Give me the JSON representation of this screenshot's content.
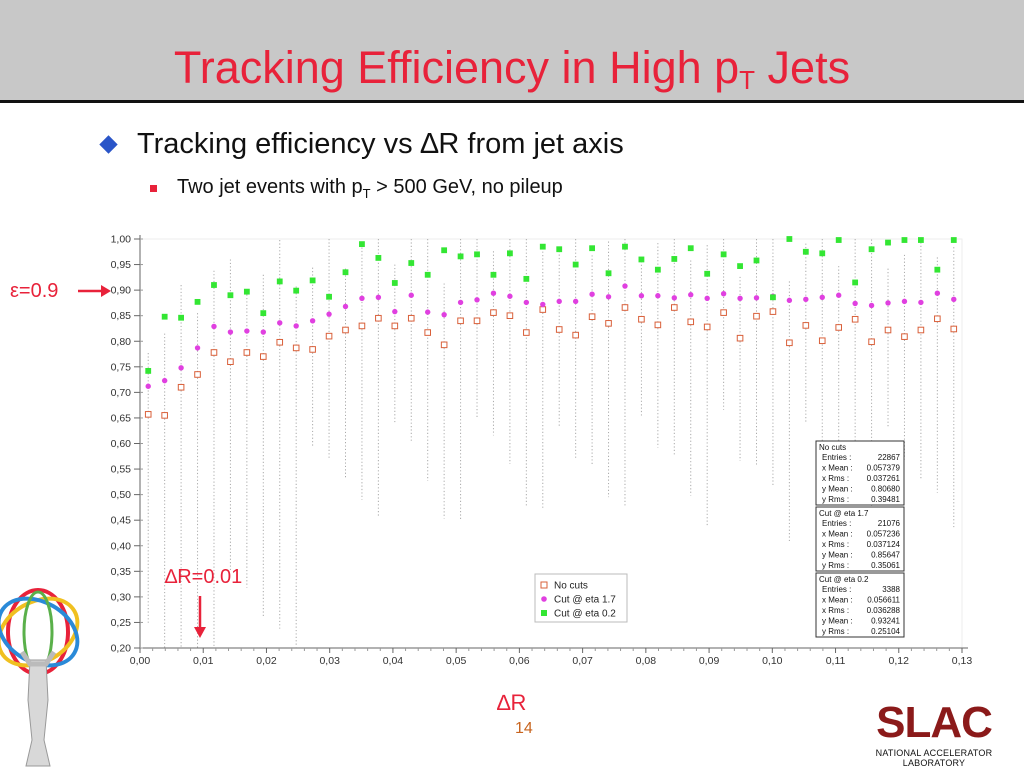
{
  "slide": {
    "title_main": "Tracking Efficiency in High p",
    "title_sub": "T",
    "title_end": " Jets",
    "bullet1": "Tracking efficiency vs ∆R from jet axis",
    "bullet2_pre": "Two jet events with p",
    "bullet2_sub": "T",
    "bullet2_post": " > 500 GeV, no pileup",
    "eps_label": "ε=0.9",
    "dr_label": "∆R=0.01",
    "xaxis_label": "∆R",
    "page_number": "14",
    "logo_text": "SLAC",
    "logo_subtext": "NATIONAL ACCELERATOR LABORATORY"
  },
  "colors": {
    "title": "#e8223a",
    "accent": "#e8223a",
    "no_cuts": "#d9603a",
    "eta17": "#e040e0",
    "eta02": "#33e633"
  },
  "chart_data": {
    "type": "scatter",
    "xlim": [
      0.0,
      0.13
    ],
    "ylim": [
      0.2,
      1.0
    ],
    "xticks": [
      "0,00",
      "0,01",
      "0,02",
      "0,03",
      "0,04",
      "0,05",
      "0,06",
      "0,07",
      "0,08",
      "0,09",
      "0,10",
      "0,11",
      "0,12",
      "0,13"
    ],
    "yticks": [
      "0,20",
      "0,25",
      "0,30",
      "0,35",
      "0,40",
      "0,45",
      "0,50",
      "0,55",
      "0,60",
      "0,65",
      "0,70",
      "0,75",
      "0,80",
      "0,85",
      "0,90",
      "0,95",
      "1,00"
    ],
    "grid": false,
    "legend_position": "bottom-center",
    "series": [
      {
        "name": "No cuts",
        "marker": "open-square",
        "x": [
          0.0013,
          0.0039,
          0.0065,
          0.0091,
          0.0117,
          0.0143,
          0.0169,
          0.0195,
          0.0221,
          0.0247,
          0.0273,
          0.0299,
          0.0325,
          0.0351,
          0.0377,
          0.0403,
          0.0429,
          0.0455,
          0.0481,
          0.0507,
          0.0533,
          0.0559,
          0.0585,
          0.0611,
          0.0637,
          0.0663,
          0.0689,
          0.0715,
          0.0741,
          0.0767,
          0.0793,
          0.0819,
          0.0845,
          0.0871,
          0.0897,
          0.0923,
          0.0949,
          0.0975,
          0.1001,
          0.1027,
          0.1053,
          0.1079,
          0.1105,
          0.1131,
          0.1157,
          0.1183,
          0.1209,
          0.1235,
          0.1261,
          0.1287
        ],
        "y": [
          0.657,
          0.655,
          0.71,
          0.735,
          0.778,
          0.76,
          0.778,
          0.77,
          0.798,
          0.787,
          0.784,
          0.81,
          0.822,
          0.83,
          0.845,
          0.83,
          0.845,
          0.817,
          0.793,
          0.84,
          0.84,
          0.856,
          0.85,
          0.817,
          0.862,
          0.823,
          0.812,
          0.848,
          0.835,
          0.866,
          0.843,
          0.832,
          0.866,
          0.838,
          0.828,
          0.856,
          0.806,
          0.849,
          0.858,
          0.797,
          0.831,
          0.801,
          0.827,
          0.843,
          0.799,
          0.822,
          0.809,
          0.822,
          0.844,
          0.824
        ]
      },
      {
        "name": "Cut @ eta 1.7",
        "marker": "dot",
        "x": [
          0.0013,
          0.0039,
          0.0065,
          0.0091,
          0.0117,
          0.0143,
          0.0169,
          0.0195,
          0.0221,
          0.0247,
          0.0273,
          0.0299,
          0.0325,
          0.0351,
          0.0377,
          0.0403,
          0.0429,
          0.0455,
          0.0481,
          0.0507,
          0.0533,
          0.0559,
          0.0585,
          0.0611,
          0.0637,
          0.0663,
          0.0689,
          0.0715,
          0.0741,
          0.0767,
          0.0793,
          0.0819,
          0.0845,
          0.0871,
          0.0897,
          0.0923,
          0.0949,
          0.0975,
          0.1001,
          0.1027,
          0.1053,
          0.1079,
          0.1105,
          0.1131,
          0.1157,
          0.1183,
          0.1209,
          0.1235,
          0.1261,
          0.1287
        ],
        "y": [
          0.712,
          0.723,
          0.748,
          0.787,
          0.829,
          0.818,
          0.82,
          0.818,
          0.836,
          0.83,
          0.84,
          0.853,
          0.868,
          0.884,
          0.886,
          0.858,
          0.89,
          0.857,
          0.852,
          0.876,
          0.881,
          0.894,
          0.888,
          0.876,
          0.872,
          0.878,
          0.878,
          0.892,
          0.887,
          0.908,
          0.889,
          0.889,
          0.885,
          0.891,
          0.884,
          0.893,
          0.884,
          0.885,
          0.888,
          0.88,
          0.882,
          0.886,
          0.89,
          0.874,
          0.87,
          0.875,
          0.878,
          0.876,
          0.894,
          0.882
        ]
      },
      {
        "name": "Cut @ eta 0.2",
        "marker": "filled-square",
        "x": [
          0.0013,
          0.0039,
          0.0065,
          0.0091,
          0.0117,
          0.0143,
          0.0169,
          0.0195,
          0.0221,
          0.0247,
          0.0273,
          0.0299,
          0.0325,
          0.0351,
          0.0377,
          0.0403,
          0.0429,
          0.0455,
          0.0481,
          0.0507,
          0.0533,
          0.0559,
          0.0585,
          0.0611,
          0.0637,
          0.0663,
          0.0689,
          0.0715,
          0.0741,
          0.0767,
          0.0793,
          0.0819,
          0.0845,
          0.0871,
          0.0897,
          0.0923,
          0.0949,
          0.0975,
          0.1001,
          0.1027,
          0.1053,
          0.1079,
          0.1105,
          0.1131,
          0.1157,
          0.1183,
          0.1209,
          0.1235,
          0.1261,
          0.1287
        ],
        "y": [
          0.742,
          0.848,
          0.846,
          0.877,
          0.91,
          0.89,
          0.897,
          0.855,
          0.917,
          0.899,
          0.919,
          0.887,
          0.935,
          0.99,
          0.963,
          0.914,
          0.953,
          0.93,
          0.978,
          0.966,
          0.97,
          0.93,
          0.972,
          0.922,
          0.985,
          0.98,
          0.95,
          0.982,
          0.933,
          0.985,
          0.96,
          0.94,
          0.961,
          0.982,
          0.932,
          0.97,
          0.947,
          0.958,
          0.886,
          1.0,
          0.975,
          0.972,
          0.998,
          0.915,
          0.98,
          0.993,
          0.998,
          0.998,
          0.94,
          0.998
        ]
      }
    ],
    "stats_boxes": [
      {
        "name": "No cuts",
        "rows": [
          [
            "Entries :",
            "22867"
          ],
          [
            "x Mean :",
            "0.057379"
          ],
          [
            "x Rms :",
            "0.037261"
          ],
          [
            "y Mean :",
            "0.80680"
          ],
          [
            "y Rms :",
            "0.39481"
          ]
        ]
      },
      {
        "name": "Cut @ eta 1.7",
        "rows": [
          [
            "Entries :",
            "21076"
          ],
          [
            "x Mean :",
            "0.057236"
          ],
          [
            "x Rms :",
            "0.037124"
          ],
          [
            "y Mean :",
            "0.85647"
          ],
          [
            "y Rms :",
            "0.35061"
          ]
        ]
      },
      {
        "name": "Cut @ eta 0.2",
        "rows": [
          [
            "Entries :",
            "3388"
          ],
          [
            "x Mean :",
            "0.056611"
          ],
          [
            "x Rms :",
            "0.036288"
          ],
          [
            "y Mean :",
            "0.93241"
          ],
          [
            "y Rms :",
            "0.25104"
          ]
        ]
      }
    ]
  }
}
